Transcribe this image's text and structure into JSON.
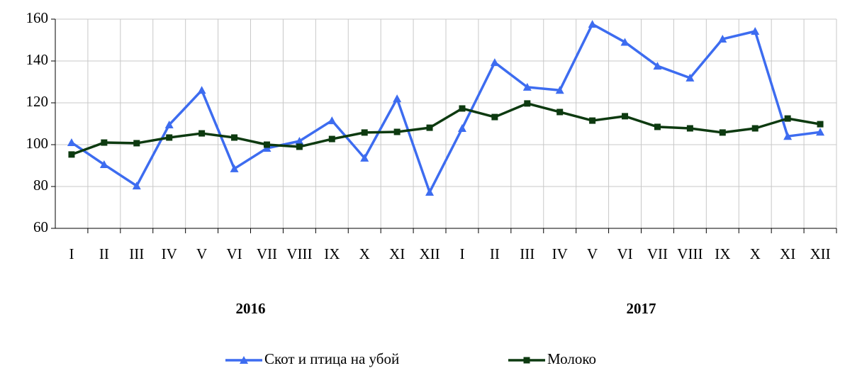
{
  "chart_data": {
    "type": "line",
    "categories": [
      "I",
      "II",
      "III",
      "IV",
      "V",
      "VI",
      "VII",
      "VIII",
      "IX",
      "X",
      "XI",
      "XII",
      "I",
      "II",
      "III",
      "IV",
      "V",
      "VI",
      "VII",
      "VIII",
      "IX",
      "X",
      "XI",
      "XII"
    ],
    "x_groups": [
      "2016",
      "2017"
    ],
    "series": [
      {
        "name": "Скот и птица на убой",
        "color": "#3d6cf0",
        "marker": "triangle",
        "values": [
          101,
          90.5,
          80.3,
          109.5,
          126,
          88.5,
          98.3,
          101.7,
          111.5,
          93.6,
          122,
          77.3,
          107.8,
          139.3,
          127.5,
          126,
          157.6,
          149,
          137.6,
          131.9,
          150.5,
          154.2,
          104,
          106
        ]
      },
      {
        "name": "Молоко",
        "color": "#0d3a10",
        "marker": "square",
        "values": [
          95.3,
          101,
          100.7,
          103.4,
          105.4,
          103.4,
          100,
          99,
          102.7,
          105.8,
          106.1,
          108.1,
          117.3,
          113.2,
          119.7,
          115.6,
          111.5,
          113.6,
          108.5,
          107.8,
          105.8,
          107.8,
          112.5,
          109.8
        ]
      }
    ],
    "ylim": [
      60,
      160
    ],
    "yticks": [
      60,
      80,
      100,
      120,
      140,
      160
    ],
    "grid": true,
    "legend": "bottom"
  }
}
